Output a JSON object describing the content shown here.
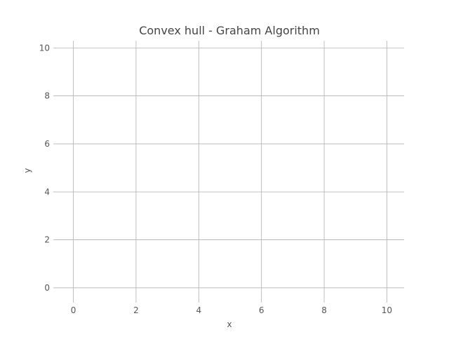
{
  "chart_data": {
    "type": "scatter",
    "title": "Convex hull - Graham Algorithm",
    "xlabel": "x",
    "ylabel": "y",
    "xlim": [
      -0.55,
      10.55
    ],
    "ylim": [
      -0.5,
      10.3
    ],
    "xticks": [
      0,
      2,
      4,
      6,
      8,
      10
    ],
    "yticks": [
      0,
      2,
      4,
      6,
      8,
      10
    ],
    "grid": true,
    "series": []
  }
}
